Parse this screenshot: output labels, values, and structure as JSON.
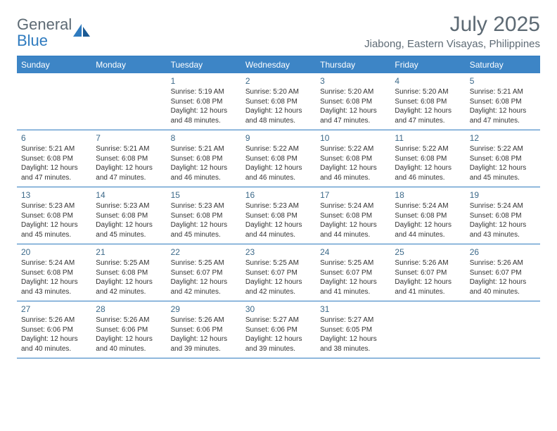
{
  "logo": {
    "text1": "General",
    "text2": "Blue"
  },
  "title": "July 2025",
  "location": "Jiabong, Eastern Visayas, Philippines",
  "colors": {
    "header_bg": "#3d85c6",
    "header_text": "#ffffff",
    "border": "#2f7bbf",
    "logo_gray": "#5d6a74",
    "logo_blue": "#2f7bbf",
    "daynum": "#3d6a8a",
    "body_text": "#333333"
  },
  "weekdays": [
    "Sunday",
    "Monday",
    "Tuesday",
    "Wednesday",
    "Thursday",
    "Friday",
    "Saturday"
  ],
  "weeks": [
    [
      null,
      null,
      {
        "d": "1",
        "sr": "5:19 AM",
        "ss": "6:08 PM",
        "dl": "12 hours and 48 minutes."
      },
      {
        "d": "2",
        "sr": "5:20 AM",
        "ss": "6:08 PM",
        "dl": "12 hours and 48 minutes."
      },
      {
        "d": "3",
        "sr": "5:20 AM",
        "ss": "6:08 PM",
        "dl": "12 hours and 47 minutes."
      },
      {
        "d": "4",
        "sr": "5:20 AM",
        "ss": "6:08 PM",
        "dl": "12 hours and 47 minutes."
      },
      {
        "d": "5",
        "sr": "5:21 AM",
        "ss": "6:08 PM",
        "dl": "12 hours and 47 minutes."
      }
    ],
    [
      {
        "d": "6",
        "sr": "5:21 AM",
        "ss": "6:08 PM",
        "dl": "12 hours and 47 minutes."
      },
      {
        "d": "7",
        "sr": "5:21 AM",
        "ss": "6:08 PM",
        "dl": "12 hours and 47 minutes."
      },
      {
        "d": "8",
        "sr": "5:21 AM",
        "ss": "6:08 PM",
        "dl": "12 hours and 46 minutes."
      },
      {
        "d": "9",
        "sr": "5:22 AM",
        "ss": "6:08 PM",
        "dl": "12 hours and 46 minutes."
      },
      {
        "d": "10",
        "sr": "5:22 AM",
        "ss": "6:08 PM",
        "dl": "12 hours and 46 minutes."
      },
      {
        "d": "11",
        "sr": "5:22 AM",
        "ss": "6:08 PM",
        "dl": "12 hours and 46 minutes."
      },
      {
        "d": "12",
        "sr": "5:22 AM",
        "ss": "6:08 PM",
        "dl": "12 hours and 45 minutes."
      }
    ],
    [
      {
        "d": "13",
        "sr": "5:23 AM",
        "ss": "6:08 PM",
        "dl": "12 hours and 45 minutes."
      },
      {
        "d": "14",
        "sr": "5:23 AM",
        "ss": "6:08 PM",
        "dl": "12 hours and 45 minutes."
      },
      {
        "d": "15",
        "sr": "5:23 AM",
        "ss": "6:08 PM",
        "dl": "12 hours and 45 minutes."
      },
      {
        "d": "16",
        "sr": "5:23 AM",
        "ss": "6:08 PM",
        "dl": "12 hours and 44 minutes."
      },
      {
        "d": "17",
        "sr": "5:24 AM",
        "ss": "6:08 PM",
        "dl": "12 hours and 44 minutes."
      },
      {
        "d": "18",
        "sr": "5:24 AM",
        "ss": "6:08 PM",
        "dl": "12 hours and 44 minutes."
      },
      {
        "d": "19",
        "sr": "5:24 AM",
        "ss": "6:08 PM",
        "dl": "12 hours and 43 minutes."
      }
    ],
    [
      {
        "d": "20",
        "sr": "5:24 AM",
        "ss": "6:08 PM",
        "dl": "12 hours and 43 minutes."
      },
      {
        "d": "21",
        "sr": "5:25 AM",
        "ss": "6:08 PM",
        "dl": "12 hours and 42 minutes."
      },
      {
        "d": "22",
        "sr": "5:25 AM",
        "ss": "6:07 PM",
        "dl": "12 hours and 42 minutes."
      },
      {
        "d": "23",
        "sr": "5:25 AM",
        "ss": "6:07 PM",
        "dl": "12 hours and 42 minutes."
      },
      {
        "d": "24",
        "sr": "5:25 AM",
        "ss": "6:07 PM",
        "dl": "12 hours and 41 minutes."
      },
      {
        "d": "25",
        "sr": "5:26 AM",
        "ss": "6:07 PM",
        "dl": "12 hours and 41 minutes."
      },
      {
        "d": "26",
        "sr": "5:26 AM",
        "ss": "6:07 PM",
        "dl": "12 hours and 40 minutes."
      }
    ],
    [
      {
        "d": "27",
        "sr": "5:26 AM",
        "ss": "6:06 PM",
        "dl": "12 hours and 40 minutes."
      },
      {
        "d": "28",
        "sr": "5:26 AM",
        "ss": "6:06 PM",
        "dl": "12 hours and 40 minutes."
      },
      {
        "d": "29",
        "sr": "5:26 AM",
        "ss": "6:06 PM",
        "dl": "12 hours and 39 minutes."
      },
      {
        "d": "30",
        "sr": "5:27 AM",
        "ss": "6:06 PM",
        "dl": "12 hours and 39 minutes."
      },
      {
        "d": "31",
        "sr": "5:27 AM",
        "ss": "6:05 PM",
        "dl": "12 hours and 38 minutes."
      },
      null,
      null
    ]
  ],
  "labels": {
    "sunrise": "Sunrise:",
    "sunset": "Sunset:",
    "daylight": "Daylight:"
  }
}
